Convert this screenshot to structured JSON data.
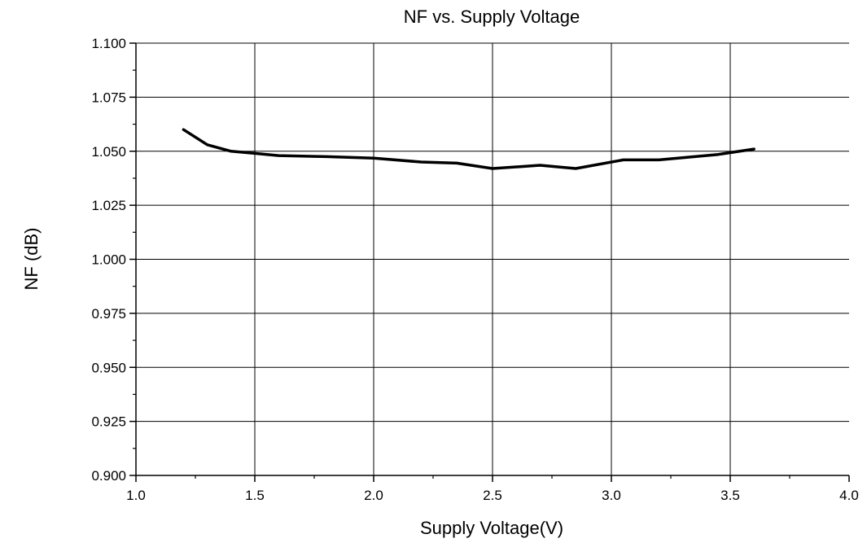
{
  "chart_data": {
    "type": "line",
    "title": "NF vs. Supply Voltage",
    "xlabel": "Supply Voltage(V)",
    "ylabel": "NF (dB)",
    "xlim": [
      1.0,
      4.0
    ],
    "ylim": [
      0.9,
      1.1
    ],
    "xticks": [
      "1.0",
      "1.5",
      "2.0",
      "2.5",
      "3.0",
      "3.5",
      "4.0"
    ],
    "yticks": [
      "0.900",
      "0.925",
      "0.950",
      "0.975",
      "1.000",
      "1.025",
      "1.050",
      "1.075",
      "1.100"
    ],
    "grid": true,
    "series": [
      {
        "color": "#000000",
        "x": [
          1.2,
          1.3,
          1.4,
          1.5,
          1.6,
          1.8,
          2.0,
          2.2,
          2.35,
          2.5,
          2.7,
          2.85,
          3.05,
          3.2,
          3.45,
          3.6
        ],
        "y": [
          1.06,
          1.053,
          1.05,
          1.049,
          1.048,
          1.0475,
          1.0468,
          1.045,
          1.0445,
          1.042,
          1.0435,
          1.042,
          1.046,
          1.046,
          1.0485,
          1.051
        ]
      }
    ]
  }
}
